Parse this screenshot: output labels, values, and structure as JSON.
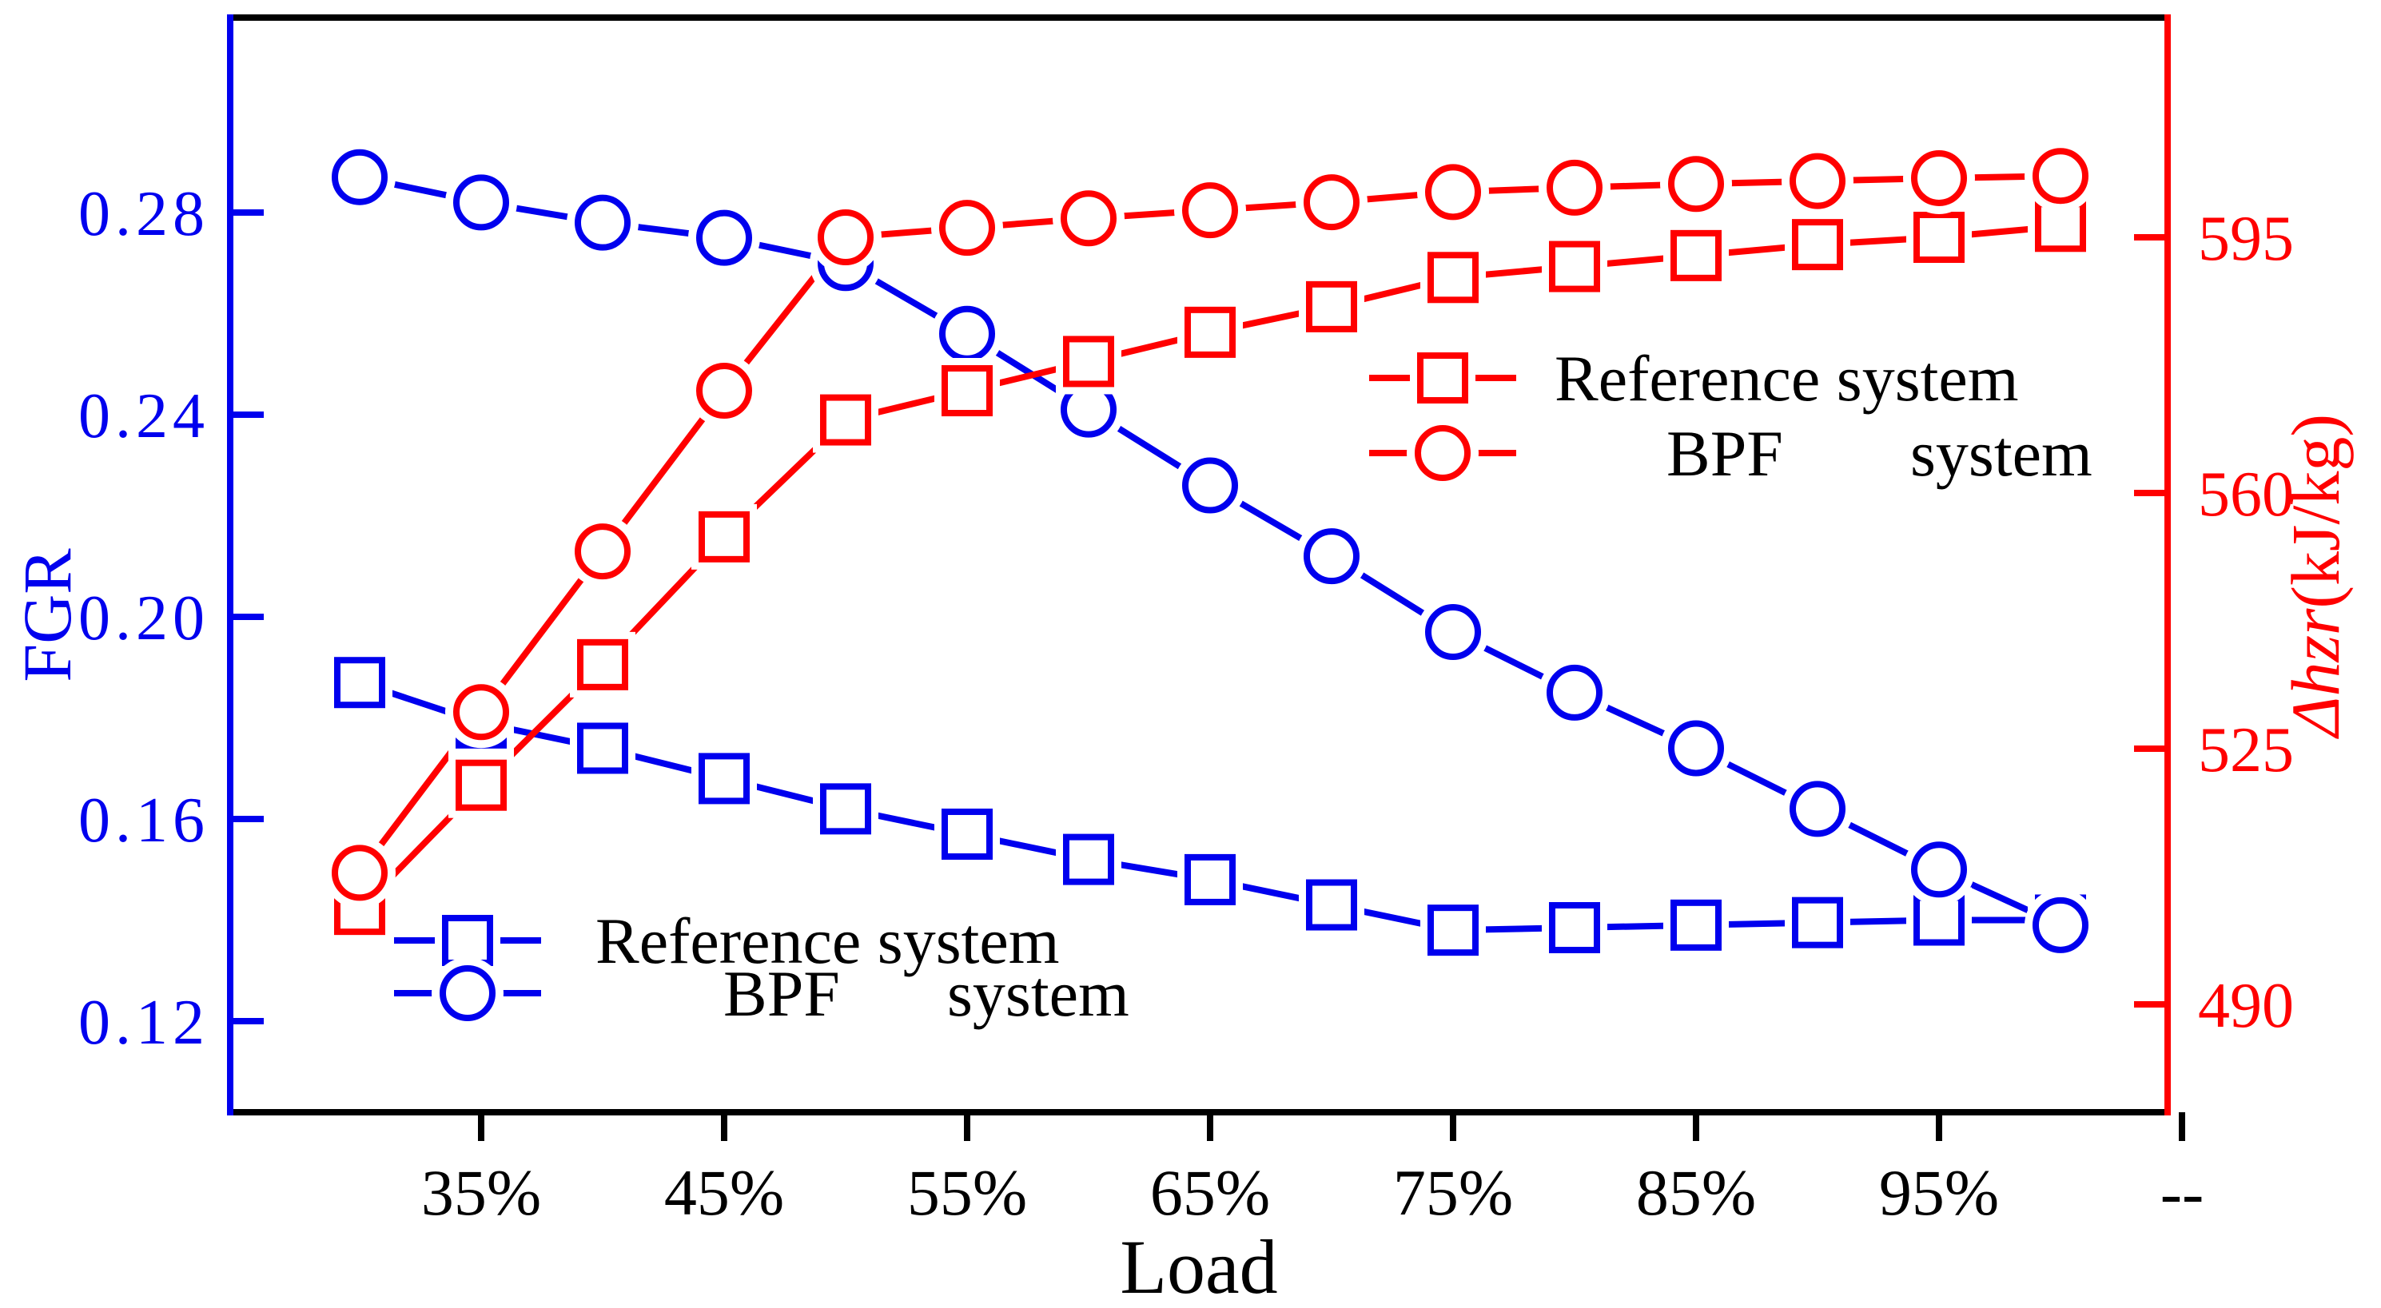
{
  "figure": {
    "background": "#ffffff"
  },
  "colors": {
    "blue": "#0000ee",
    "red": "#ff0000",
    "frame": "#000000",
    "text": "#000000",
    "marker_fill": "#ffffff"
  },
  "title_x": "Load",
  "axes": {
    "left": {
      "label": "FGR",
      "color": "#0000ee",
      "tick_labels": [
        "0.28",
        "0.24",
        "0.20",
        "0.16",
        "0.12"
      ],
      "tick_values": [
        0.28,
        0.24,
        0.2,
        0.16,
        0.12
      ]
    },
    "right": {
      "label_italic": "Δhzr",
      "label_units": "(kJ/kg)",
      "color": "#ff0000",
      "tick_labels": [
        "595",
        "560",
        "525",
        "490"
      ],
      "tick_values": [
        595,
        560,
        525,
        490
      ]
    },
    "x": {
      "label": "Load",
      "tick_labels": [
        "35%",
        "45%",
        "55%",
        "65%",
        "75%",
        "85%",
        "95%",
        "--"
      ],
      "tick_values": [
        35,
        45,
        55,
        65,
        75,
        85,
        95,
        105
      ]
    }
  },
  "legends": {
    "blue": {
      "row1": "Reference system",
      "row2_a": "BPF",
      "row2_b": "system"
    },
    "red": {
      "row1": "Reference system",
      "row2_a": "BPF",
      "row2_b": "system"
    }
  },
  "chart_data": {
    "type": "line",
    "x_load_percent": [
      30,
      35,
      40,
      45,
      50,
      55,
      60,
      65,
      70,
      75,
      80,
      85,
      90,
      95,
      100
    ],
    "x_tick_labels": [
      "35%",
      "45%",
      "55%",
      "65%",
      "75%",
      "85%",
      "95%",
      "--"
    ],
    "xlabel": "Load",
    "ylabel_left": "FGR",
    "ylabel_right": "Δhzr(kJ/kg)",
    "ylim_left": [
      0.102,
      0.319
    ],
    "ylim_right": [
      475,
      625
    ],
    "grid": false,
    "series": [
      {
        "name": "Reference system",
        "axis": "left",
        "marker": "square",
        "color": "#0000ee",
        "values": [
          0.187,
          0.179,
          0.174,
          0.168,
          0.162,
          0.157,
          0.152,
          0.148,
          0.143,
          0.138,
          0.1385,
          0.139,
          0.1395,
          0.14,
          0.14
        ]
      },
      {
        "name": "BPF system",
        "axis": "left",
        "marker": "circle",
        "color": "#0000ee",
        "values": [
          0.287,
          0.282,
          0.278,
          0.275,
          0.27,
          0.256,
          0.241,
          0.226,
          0.212,
          0.197,
          0.185,
          0.174,
          0.162,
          0.15,
          0.139
        ]
      },
      {
        "name": "Reference system",
        "axis": "right",
        "marker": "square",
        "color": "#ff0000",
        "values": [
          503,
          520,
          536.5,
          554,
          570,
          574,
          578,
          582,
          585.5,
          589.5,
          591,
          592.5,
          594,
          595,
          596.5
        ]
      },
      {
        "name": "BPF system",
        "axis": "right",
        "marker": "circle",
        "color": "#ff0000",
        "values": [
          508,
          530,
          552,
          574,
          595,
          596.3,
          597.6,
          598.7,
          599.8,
          601.2,
          601.8,
          602.3,
          602.7,
          603.1,
          603.4
        ]
      }
    ],
    "legend_position_blue": "lower left",
    "legend_position_red": "center right"
  }
}
